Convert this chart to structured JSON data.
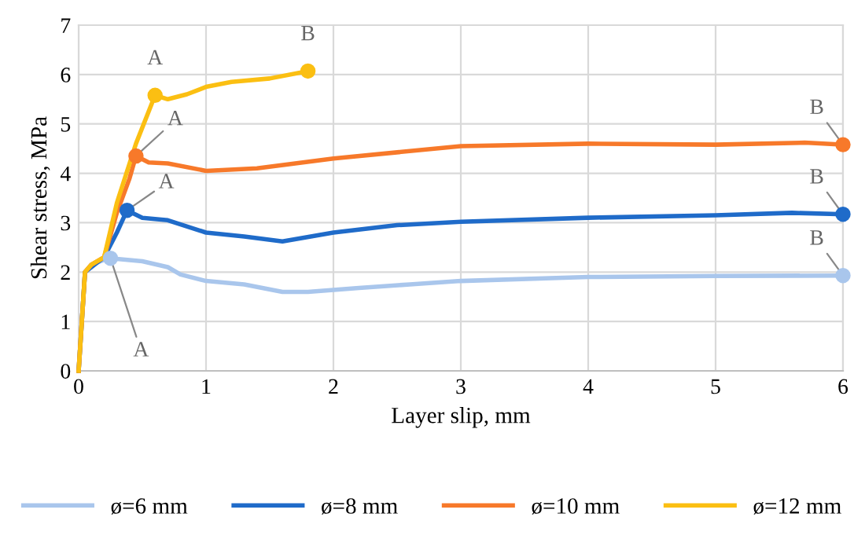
{
  "chart_data": {
    "type": "line",
    "xlabel": "Layer slip, mm",
    "ylabel": "Shear stress, MPa",
    "xlim": [
      0,
      6
    ],
    "ylim": [
      0,
      7
    ],
    "xticks": [
      0,
      1,
      2,
      3,
      4,
      5,
      6
    ],
    "yticks": [
      0,
      1,
      2,
      3,
      4,
      5,
      6,
      7
    ],
    "grid": true,
    "legend": "bottom",
    "line_style": "solid",
    "series": [
      {
        "name": "ø=6 mm",
        "color": "#a9c6ec",
        "x": [
          0,
          0.05,
          0.1,
          0.2,
          0.25,
          0.5,
          0.7,
          0.8,
          1,
          1.3,
          1.6,
          1.8,
          2.2,
          2.6,
          3,
          4,
          5,
          6
        ],
        "values": [
          0,
          2.0,
          2.15,
          2.25,
          2.28,
          2.22,
          2.1,
          1.95,
          1.82,
          1.75,
          1.6,
          1.6,
          1.68,
          1.75,
          1.82,
          1.9,
          1.92,
          1.93
        ]
      },
      {
        "name": "ø=8 mm",
        "color": "#1f6bc9",
        "x": [
          0,
          0.05,
          0.2,
          0.3,
          0.38,
          0.5,
          0.7,
          1,
          1.3,
          1.6,
          2,
          2.5,
          3,
          4,
          5,
          5.6,
          6
        ],
        "values": [
          0,
          2.0,
          2.3,
          2.8,
          3.25,
          3.1,
          3.05,
          2.8,
          2.72,
          2.62,
          2.8,
          2.95,
          3.02,
          3.1,
          3.15,
          3.2,
          3.17
        ]
      },
      {
        "name": "ø=10 mm",
        "color": "#f7792a",
        "x": [
          0,
          0.05,
          0.1,
          0.2,
          0.3,
          0.4,
          0.45,
          0.55,
          0.7,
          1,
          1.4,
          2,
          3,
          4,
          5,
          5.7,
          6
        ],
        "values": [
          0,
          2.0,
          2.15,
          2.3,
          3.2,
          3.9,
          4.35,
          4.22,
          4.2,
          4.05,
          4.1,
          4.3,
          4.55,
          4.6,
          4.58,
          4.62,
          4.58
        ]
      },
      {
        "name": "ø=12 mm",
        "color": "#fbbf12",
        "x": [
          0,
          0.05,
          0.1,
          0.2,
          0.3,
          0.45,
          0.6,
          0.7,
          0.85,
          1,
          1.2,
          1.5,
          1.8
        ],
        "values": [
          0,
          2.0,
          2.15,
          2.3,
          3.4,
          4.6,
          5.58,
          5.5,
          5.6,
          5.75,
          5.85,
          5.92,
          6.07
        ]
      }
    ],
    "annotations": [
      {
        "text": "A",
        "x": 0.25,
        "y": 2.28
      },
      {
        "text": "A",
        "x": 0.38,
        "y": 3.25
      },
      {
        "text": "A",
        "x": 0.45,
        "y": 4.35
      },
      {
        "text": "A",
        "x": 0.6,
        "y": 5.58
      },
      {
        "text": "B",
        "x": 6,
        "y": 1.93
      },
      {
        "text": "B",
        "x": 6,
        "y": 3.17
      },
      {
        "text": "B",
        "x": 6,
        "y": 4.58
      },
      {
        "text": "B",
        "x": 1.8,
        "y": 6.07
      }
    ]
  }
}
